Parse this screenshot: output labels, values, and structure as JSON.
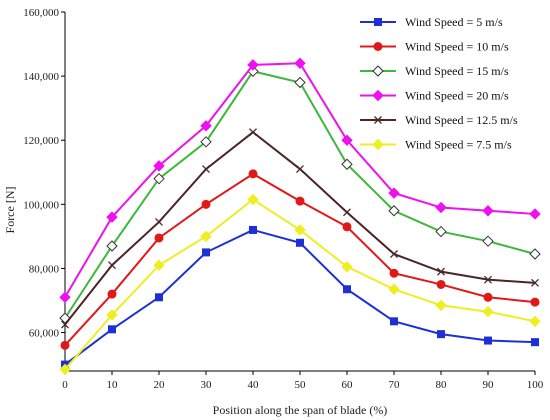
{
  "chart_data": {
    "type": "line",
    "xlabel": "Position along the span of blade (%)",
    "ylabel": "Force [N]",
    "xlim": [
      0,
      100
    ],
    "ylim": [
      48000,
      160000
    ],
    "x": [
      0,
      10,
      20,
      30,
      40,
      50,
      60,
      70,
      80,
      90,
      100
    ],
    "x_ticks": [
      "0",
      "10",
      "20",
      "30",
      "40",
      "50",
      "60",
      "70",
      "80",
      "90",
      "100"
    ],
    "y_ticks": [
      {
        "value": 60000,
        "label": "60,000"
      },
      {
        "value": 80000,
        "label": "80,000"
      },
      {
        "value": 100000,
        "label": "100,000"
      },
      {
        "value": 120000,
        "label": "120,000"
      },
      {
        "value": 140000,
        "label": "140,000"
      },
      {
        "value": 160000,
        "label": "160,000"
      }
    ],
    "grid": false,
    "legend_position": "top-right",
    "series": [
      {
        "name": "Wind Speed = 5 m/s",
        "color": "#1f2fd6",
        "marker": "square",
        "values": [
          50000,
          61000,
          71000,
          85000,
          92000,
          88000,
          73500,
          63500,
          59500,
          57500,
          57000
        ]
      },
      {
        "name": "Wind Speed = 10 m/s",
        "color": "#e01818",
        "marker": "circle",
        "values": [
          56000,
          72000,
          89500,
          100000,
          109500,
          101000,
          93000,
          78500,
          75000,
          71000,
          69500
        ]
      },
      {
        "name": "Wind Speed = 15 m/s",
        "color": "#3cb83c",
        "marker": "diamond-open",
        "values": [
          64500,
          87000,
          108000,
          119500,
          141500,
          138000,
          112500,
          98000,
          91500,
          88500,
          84500
        ]
      },
      {
        "name": "Wind Speed = 20 m/s",
        "color": "#ee10ee",
        "marker": "diamond",
        "values": [
          71000,
          96000,
          112000,
          124500,
          143500,
          144000,
          120000,
          103500,
          99000,
          98000,
          97000
        ]
      },
      {
        "name": "Wind Speed = 12.5 m/s",
        "color": "#4a2626",
        "marker": "x",
        "values": [
          62500,
          81000,
          94500,
          111000,
          122500,
          111000,
          97500,
          84500,
          79000,
          76500,
          75500
        ]
      },
      {
        "name": "Wind Speed = 7.5 m/s",
        "color": "#eeee22",
        "marker": "diamond",
        "values": [
          48500,
          65500,
          81000,
          90000,
          101500,
          92000,
          80500,
          73500,
          68500,
          66500,
          63500
        ]
      }
    ]
  }
}
